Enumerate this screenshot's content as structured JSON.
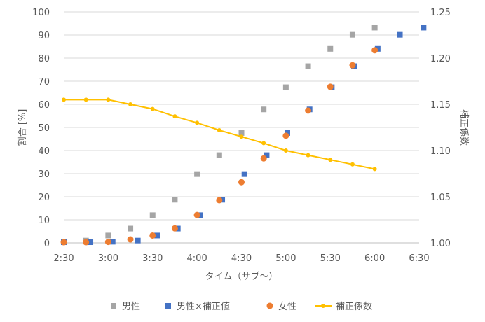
{
  "chart_data": {
    "type": "scatter",
    "xlabel": "タイム（サブ〜）",
    "ylabel_left": "割合 [%]",
    "ylabel_right": "補正係数",
    "x_ticks": [
      "2:30",
      "3:00",
      "3:30",
      "4:00",
      "4:30",
      "5:00",
      "5:30",
      "6:00",
      "6:30"
    ],
    "x_range_minutes": [
      150,
      390
    ],
    "y_left_range": [
      0,
      100
    ],
    "y_left_ticks": [
      "0",
      "10",
      "20",
      "30",
      "40",
      "50",
      "60",
      "70",
      "80",
      "90",
      "100"
    ],
    "y_right_range": [
      1.0,
      1.25
    ],
    "y_right_ticks": [
      "1.00",
      "1.05",
      "1.10",
      "1.15",
      "1.20",
      "1.25"
    ],
    "grid": "horizontal",
    "legend_position": "bottom",
    "series": [
      {
        "name": "男性",
        "axis": "left",
        "marker": "square",
        "color": "#A5A5A5",
        "x": [
          "2:30",
          "2:45",
          "3:00",
          "3:15",
          "3:30",
          "3:45",
          "4:00",
          "4:15",
          "4:30",
          "4:45",
          "5:00",
          "5:15",
          "5:30",
          "5:45",
          "6:00"
        ],
        "y": [
          0.3,
          1.0,
          3.2,
          6.2,
          12.0,
          18.7,
          29.8,
          38.0,
          47.6,
          57.8,
          67.4,
          76.5,
          84.0,
          90.1,
          93.2
        ]
      },
      {
        "name": "男性×補正値",
        "axis": "left",
        "marker": "square",
        "color": "#4472C4",
        "x": [
          "2:30",
          "2:48",
          "3:03",
          "3:20",
          "3:33",
          "3:47",
          "4:02",
          "4:17",
          "4:32",
          "4:47",
          "5:01",
          "5:16",
          "5:31",
          "5:46",
          "6:02",
          "6:17",
          "6:33"
        ],
        "y": [
          0.3,
          0.3,
          0.5,
          1.0,
          3.2,
          6.2,
          12.0,
          18.7,
          29.8,
          38.0,
          47.6,
          57.8,
          67.4,
          76.5,
          84.0,
          90.1,
          93.2
        ]
      },
      {
        "name": "女性",
        "axis": "left",
        "marker": "circle",
        "color": "#ED7D31",
        "x": [
          "2:30",
          "2:45",
          "3:00",
          "3:15",
          "3:30",
          "3:45",
          "4:00",
          "4:15",
          "4:30",
          "4:45",
          "5:00",
          "5:15",
          "5:30",
          "5:45",
          "6:00"
        ],
        "y": [
          0.3,
          0.3,
          0.4,
          1.5,
          3.2,
          6.3,
          12.1,
          18.5,
          26.3,
          36.6,
          46.4,
          57.3,
          67.6,
          76.9,
          83.4
        ]
      },
      {
        "name": "補正係数",
        "axis": "right",
        "marker": "line-dot",
        "color": "#FFC000",
        "x": [
          "2:30",
          "2:45",
          "3:00",
          "3:15",
          "3:30",
          "3:45",
          "4:00",
          "4:15",
          "4:30",
          "4:45",
          "5:00",
          "5:15",
          "5:30",
          "5:45",
          "6:00"
        ],
        "y": [
          1.155,
          1.155,
          1.155,
          1.15,
          1.145,
          1.137,
          1.13,
          1.122,
          1.115,
          1.108,
          1.1,
          1.095,
          1.09,
          1.085,
          1.08
        ]
      }
    ]
  }
}
